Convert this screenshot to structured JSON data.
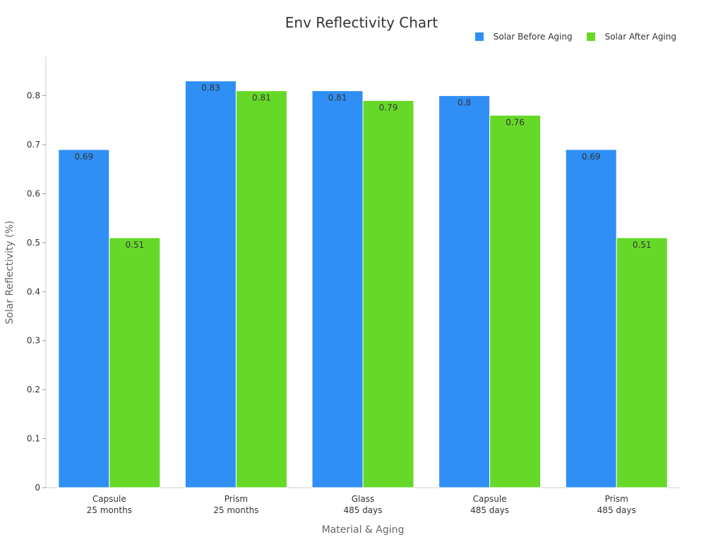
{
  "chart_data": {
    "type": "bar",
    "title": "Env Reflectivity Chart",
    "xlabel": "Material & Aging",
    "ylabel": "Solar Reflectivity (%)",
    "categories": [
      [
        "Capsule",
        "25 months"
      ],
      [
        "Prism",
        "25 months"
      ],
      [
        "Glass",
        "485 days"
      ],
      [
        "Capsule",
        "485 days"
      ],
      [
        "Prism",
        "485 days"
      ]
    ],
    "series": [
      {
        "name": "Solar Before Aging",
        "color": "#2f8ff5",
        "values": [
          0.69,
          0.83,
          0.81,
          0.8,
          0.69
        ]
      },
      {
        "name": "Solar After Aging",
        "color": "#66d928",
        "values": [
          0.51,
          0.81,
          0.79,
          0.76,
          0.51
        ]
      }
    ],
    "ylim": [
      0,
      0.88
    ],
    "yticks": [
      "0",
      "0.1",
      "0.2",
      "0.3",
      "0.4",
      "0.5",
      "0.6",
      "0.7",
      "0.8"
    ],
    "legend_position": "top-right",
    "grid": false,
    "data_labels": true
  }
}
